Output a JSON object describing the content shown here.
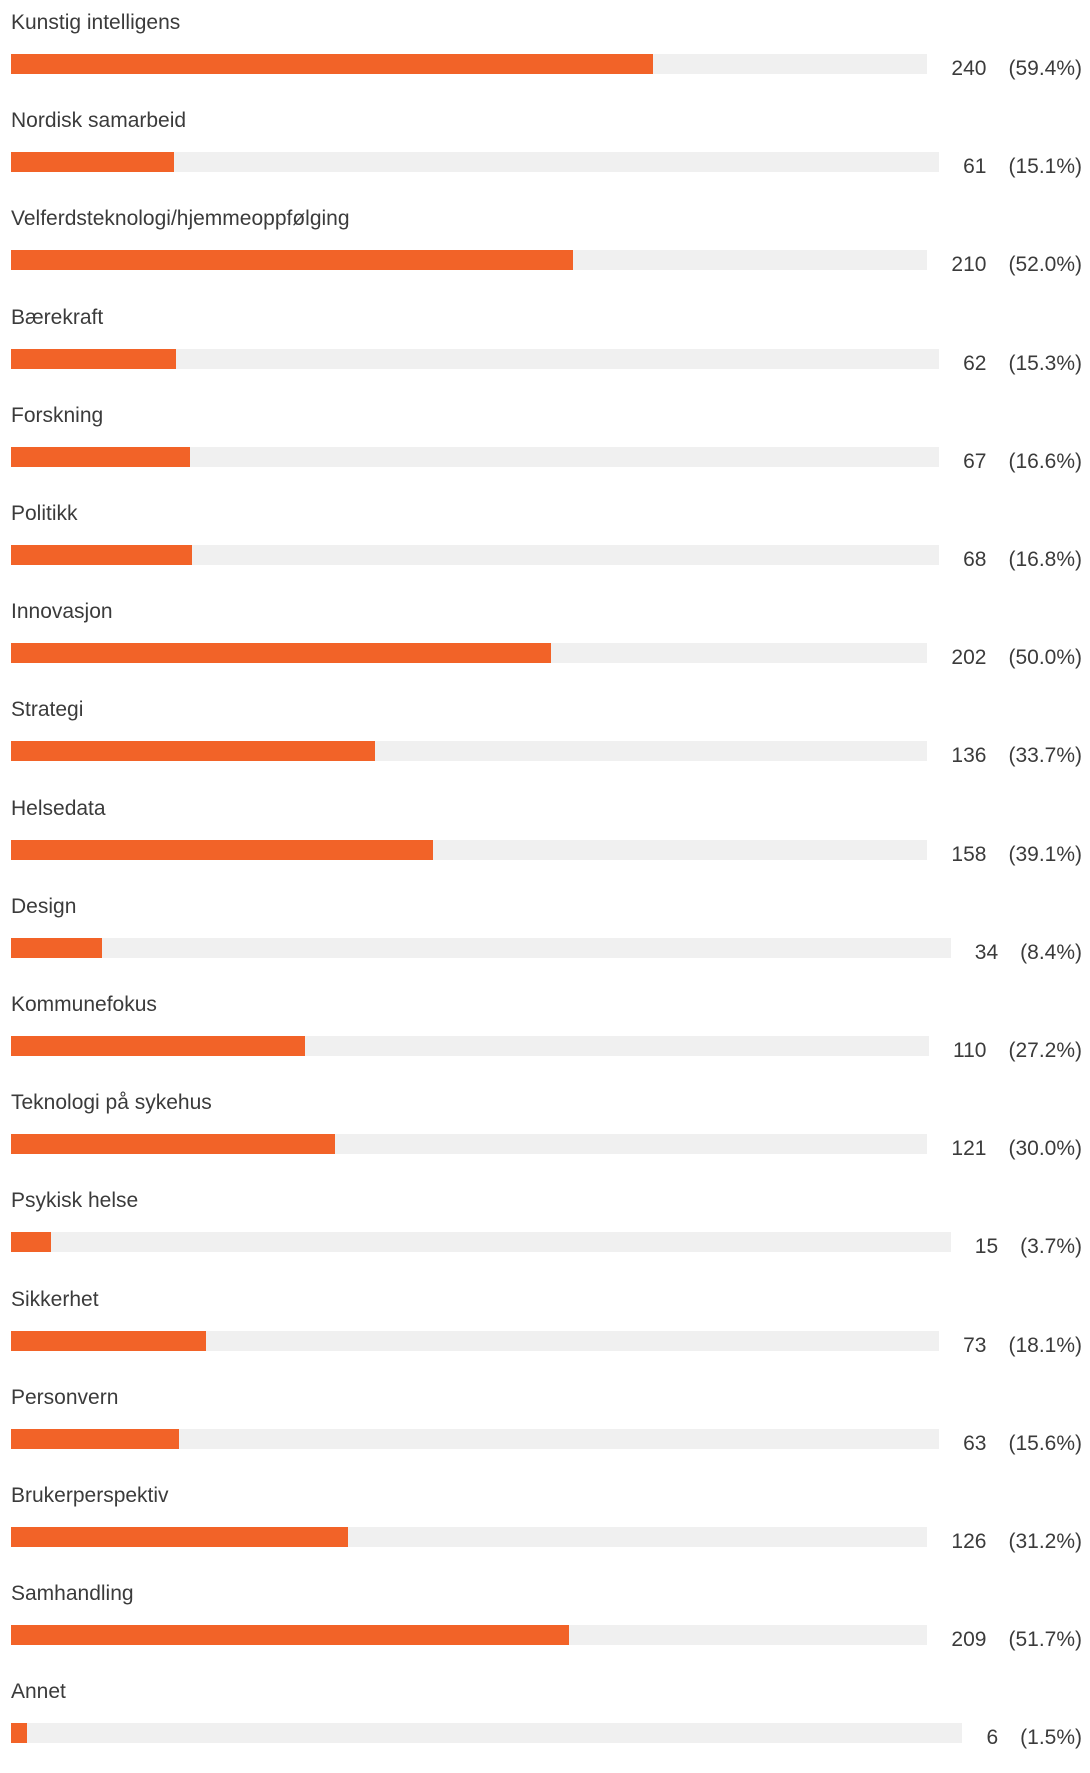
{
  "colors": {
    "bar_fill": "#f26328",
    "bar_track": "#f0f0f0",
    "text": "#3b3b3b",
    "background": "#ffffff"
  },
  "chart_data": {
    "type": "bar",
    "orientation": "horizontal",
    "title": "",
    "xlabel": "",
    "ylabel": "",
    "grid": false,
    "xlim": [
      0,
      100
    ],
    "items": [
      {
        "category": "Kunstig intelligens",
        "count": "240",
        "percent_label": "(59.4%)",
        "percent": 59.4
      },
      {
        "category": "Nordisk samarbeid",
        "count": "61",
        "percent_label": "(15.1%)",
        "percent": 15.1
      },
      {
        "category": "Velferdsteknologi/hjemmeoppfølging",
        "count": "210",
        "percent_label": "(52.0%)",
        "percent": 52.0
      },
      {
        "category": "Bærekraft",
        "count": "62",
        "percent_label": "(15.3%)",
        "percent": 15.3
      },
      {
        "category": "Forskning",
        "count": "67",
        "percent_label": "(16.6%)",
        "percent": 16.6
      },
      {
        "category": "Politikk",
        "count": "68",
        "percent_label": "(16.8%)",
        "percent": 16.8
      },
      {
        "category": "Innovasjon",
        "count": "202",
        "percent_label": "(50.0%)",
        "percent": 50.0
      },
      {
        "category": "Strategi",
        "count": "136",
        "percent_label": "(33.7%)",
        "percent": 33.7
      },
      {
        "category": "Helsedata",
        "count": "158",
        "percent_label": "(39.1%)",
        "percent": 39.1
      },
      {
        "category": "Design",
        "count": "34",
        "percent_label": "(8.4%)",
        "percent": 8.4
      },
      {
        "category": "Kommunefokus",
        "count": "110",
        "percent_label": "(27.2%)",
        "percent": 27.2
      },
      {
        "category": "Teknologi på sykehus",
        "count": "121",
        "percent_label": "(30.0%)",
        "percent": 30.0
      },
      {
        "category": "Psykisk helse",
        "count": "15",
        "percent_label": "(3.7%)",
        "percent": 3.7
      },
      {
        "category": "Sikkerhet",
        "count": "73",
        "percent_label": "(18.1%)",
        "percent": 18.1
      },
      {
        "category": "Personvern",
        "count": "63",
        "percent_label": "(15.6%)",
        "percent": 15.6
      },
      {
        "category": "Brukerperspektiv",
        "count": "126",
        "percent_label": "(31.2%)",
        "percent": 31.2
      },
      {
        "category": "Samhandling",
        "count": "209",
        "percent_label": "(51.7%)",
        "percent": 51.7
      },
      {
        "category": "Annet",
        "count": "6",
        "percent_label": "(1.5%)",
        "percent": 1.5
      }
    ]
  }
}
